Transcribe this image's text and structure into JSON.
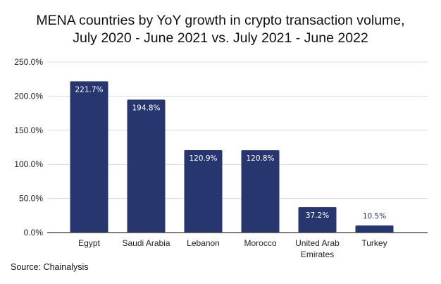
{
  "chart_data": {
    "type": "bar",
    "title_lines": [
      "MENA countries by YoY growth in crypto transaction volume,",
      "July 2020 - June 2021 vs. July 2021 - June 2022"
    ],
    "categories": [
      [
        "Egypt"
      ],
      [
        "Saudi Arabia"
      ],
      [
        "Lebanon"
      ],
      [
        "Morocco"
      ],
      [
        "United Arab",
        "Emirates"
      ],
      [
        "Turkey"
      ]
    ],
    "values": [
      221.7,
      194.8,
      120.9,
      120.8,
      37.2,
      10.5
    ],
    "data_labels": [
      "221.7%",
      "194.8%",
      "120.9%",
      "120.8%",
      "37.2%",
      "10.5%"
    ],
    "y_ticks": [
      0,
      50,
      100,
      150,
      200,
      250
    ],
    "y_tick_labels": [
      "0.0%",
      "50.0%",
      "100.0%",
      "150.0%",
      "200.0%",
      "250.0%"
    ],
    "ylim": [
      0,
      250
    ],
    "xlabel": "",
    "ylabel": "",
    "grid": true,
    "legend": "none",
    "bar_color": "#28366f",
    "label_inside_color": "#ffffff",
    "label_outside_color": "#28366f",
    "source": "Source: Chainalysis"
  }
}
